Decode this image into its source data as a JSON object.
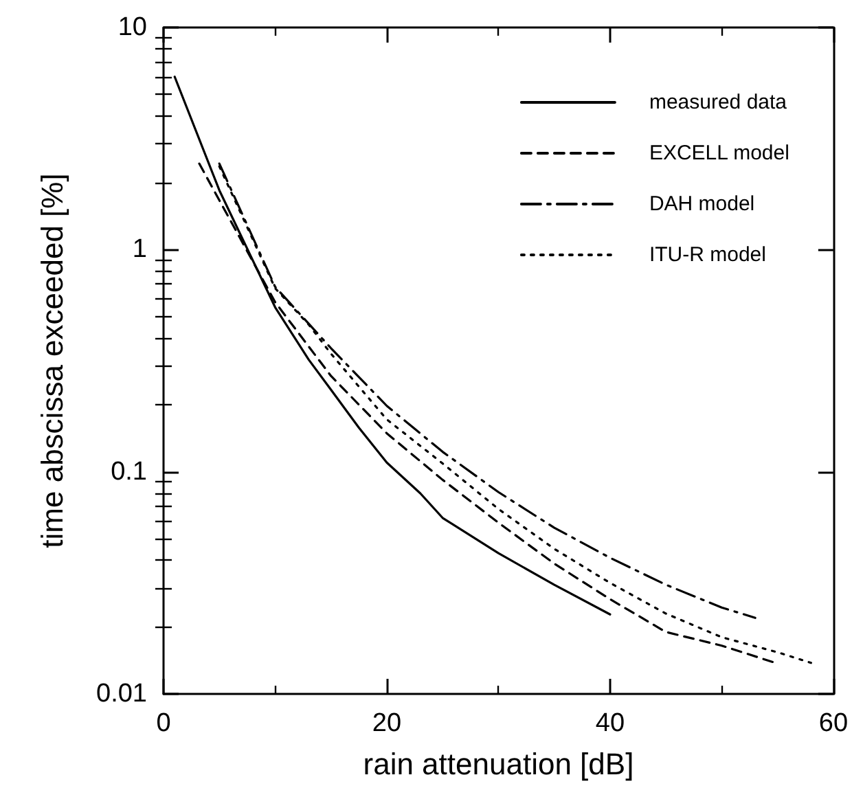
{
  "chart_data": {
    "type": "line",
    "xlabel": "rain attenuation [dB]",
    "ylabel": "time abscissa exceeded [%]",
    "log": "y",
    "xlim": [
      0,
      60
    ],
    "ylim": [
      0.01,
      10
    ],
    "xticks": [
      0,
      {
        "value": 10,
        "label": null
      },
      20,
      {
        "value": 30,
        "label": null
      },
      40,
      {
        "value": 50,
        "label": null
      },
      60
    ],
    "yticks": [
      0.01,
      {
        "value": 0.02,
        "label": null
      },
      {
        "value": 0.03,
        "label": null
      },
      {
        "value": 0.04,
        "label": null
      },
      {
        "value": 0.05,
        "label": null
      },
      {
        "value": 0.06,
        "label": null
      },
      {
        "value": 0.07,
        "label": null
      },
      {
        "value": 0.08,
        "label": null
      },
      {
        "value": 0.09,
        "label": null
      },
      0.1,
      {
        "value": 0.2,
        "label": null
      },
      {
        "value": 0.3,
        "label": null
      },
      {
        "value": 0.4,
        "label": null
      },
      {
        "value": 0.5,
        "label": null
      },
      {
        "value": 0.6,
        "label": null
      },
      {
        "value": 0.7,
        "label": null
      },
      {
        "value": 0.8,
        "label": null
      },
      {
        "value": 0.9,
        "label": null
      },
      1,
      {
        "value": 2,
        "label": null
      },
      {
        "value": 3,
        "label": null
      },
      {
        "value": 4,
        "label": null
      },
      {
        "value": 5,
        "label": null
      },
      {
        "value": 6,
        "label": null
      },
      {
        "value": 7,
        "label": null
      },
      {
        "value": 8,
        "label": null
      },
      {
        "value": 9,
        "label": null
      },
      10
    ],
    "grid": false,
    "legend": "top right",
    "marker": "none",
    "series": [
      {
        "name": "measured data",
        "color": "#000000",
        "line_style": "solid",
        "x": [
          1,
          5,
          10,
          13,
          15,
          17.5,
          20,
          23,
          25,
          30,
          35,
          40
        ],
        "values": [
          6,
          1.85,
          0.55,
          0.32,
          0.234,
          0.158,
          0.11,
          0.08,
          0.062,
          0.043,
          0.031,
          0.0228
        ]
      },
      {
        "name": "EXCELL model",
        "color": "#000000",
        "line_style": "dashed",
        "x": [
          3.2,
          10,
          15,
          20,
          25,
          30,
          35,
          40,
          45,
          50,
          55
        ],
        "values": [
          2.44,
          0.58,
          0.27,
          0.149,
          0.092,
          0.059,
          0.0386,
          0.0267,
          0.019,
          0.0165,
          0.0137
        ]
      },
      {
        "name": "DAH model",
        "color": "#000000",
        "line_style": "dashdot",
        "x": [
          5,
          10,
          15,
          20,
          25,
          30,
          35,
          40,
          45,
          50,
          53
        ],
        "values": [
          2.44,
          0.68,
          0.36,
          0.198,
          0.123,
          0.081,
          0.056,
          0.041,
          0.031,
          0.0245,
          0.022
        ]
      },
      {
        "name": "ITU-R model",
        "color": "#000000",
        "line_style": "dotted",
        "x": [
          5,
          10,
          13,
          15,
          20,
          25,
          30,
          35,
          40,
          45,
          50,
          55,
          58
        ],
        "values": [
          2.37,
          0.67,
          0.46,
          0.34,
          0.172,
          0.109,
          0.068,
          0.045,
          0.0316,
          0.023,
          0.018,
          0.0154,
          0.0138
        ]
      }
    ]
  }
}
